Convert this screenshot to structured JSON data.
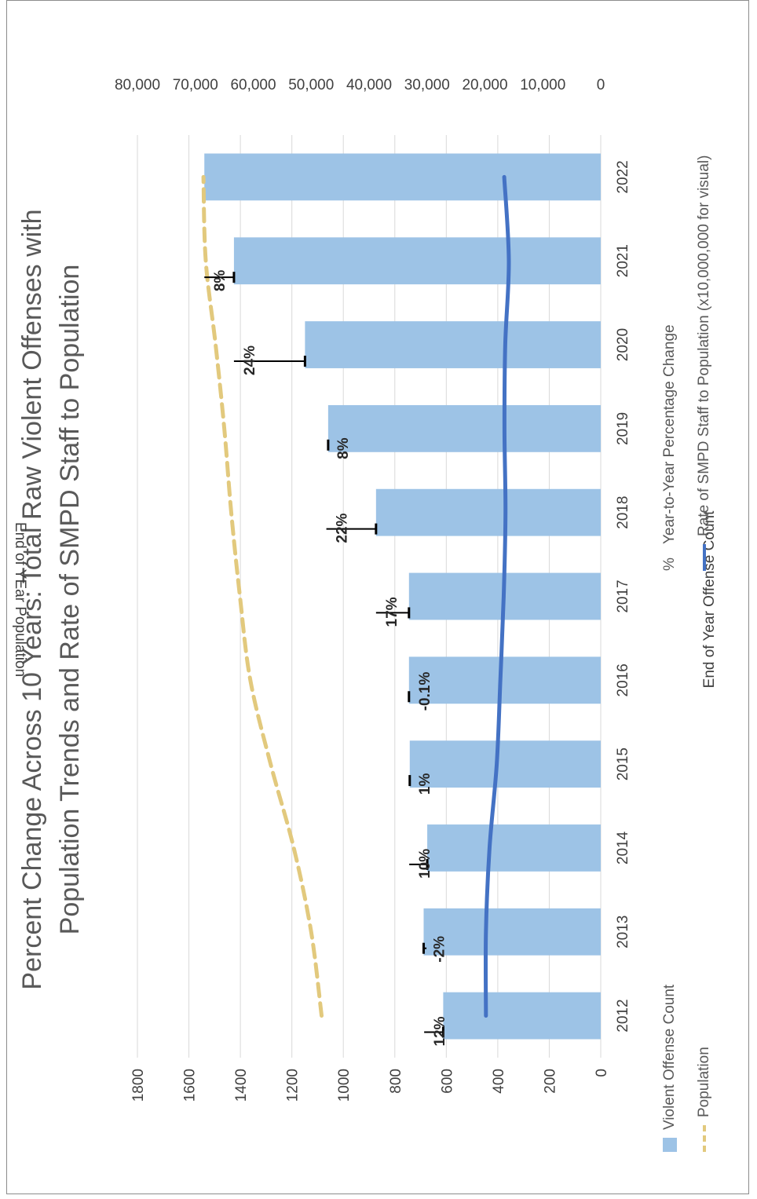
{
  "chart_data": {
    "type": "bar",
    "title_lines": [
      "Percent Change Across 10 Years: Total Raw Violent Offenses with",
      "Population Trends and Rate of SMPD Staff to Population"
    ],
    "categories": [
      "2012",
      "2013",
      "2014",
      "2015",
      "2016",
      "2017",
      "2018",
      "2019",
      "2020",
      "2021",
      "2022"
    ],
    "left_axis": {
      "title": "End of Year Offense Count",
      "min": 0,
      "max": 1800,
      "step": 200,
      "tick_labels": [
        "0",
        "200",
        "400",
        "600",
        "800",
        "1000",
        "1200",
        "1400",
        "1600",
        "1800"
      ]
    },
    "right_axis": {
      "title": "End of YEar Population",
      "min": 0,
      "max": 80000,
      "step": 10000,
      "tick_labels": [
        "0",
        "10,000",
        "20,000",
        "30,000",
        "40,000",
        "50,000",
        "60,000",
        "70,000",
        "80,000"
      ]
    },
    "grid": true,
    "series": [
      {
        "name": "Violent Offense Count",
        "kind": "bar",
        "axis": "left",
        "color": "#9dc3e6",
        "values": [
          612,
          688,
          674,
          742,
          745,
          745,
          873,
          1059,
          1149,
          1425,
          1540
        ]
      },
      {
        "name": "Population",
        "kind": "line-dashed",
        "axis": "right",
        "color": "#e2c97d",
        "values": [
          48200,
          50000,
          53000,
          57000,
          60500,
          62300,
          63800,
          65000,
          66500,
          68200,
          68600
        ]
      },
      {
        "name": "Rate of SMPD Staff to Population (x10,000,000 for visual)",
        "kind": "line",
        "axis": "left",
        "color": "#4472c4",
        "values": [
          446,
          446,
          432,
          404,
          390,
          377,
          370,
          374,
          371,
          357,
          375
        ]
      }
    ],
    "pct_change": {
      "name": "Year-to-Year Percentage Change",
      "marker": "%",
      "labels": [
        "12%",
        "-2%",
        "10%",
        "1%",
        "-0.1%",
        "17%",
        "22%",
        "8%",
        "24%",
        "8%",
        ""
      ],
      "error_top": [
        686,
        677,
        744,
        745,
        745,
        873,
        1066,
        1061,
        1425,
        1540,
        null
      ]
    },
    "legend_placement": "bottom"
  }
}
